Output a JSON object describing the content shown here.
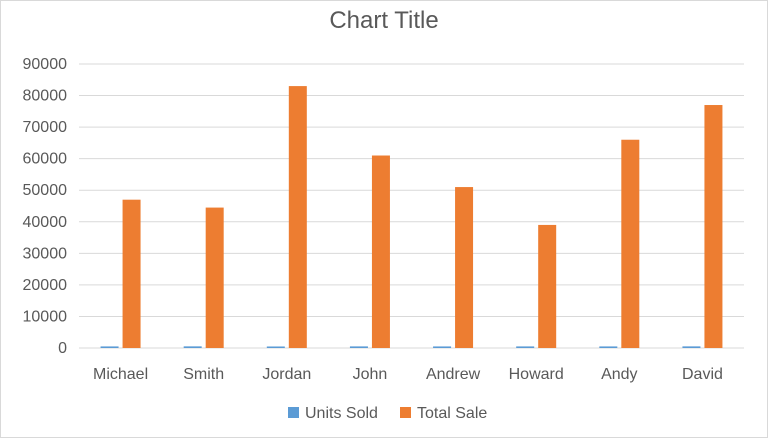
{
  "chart_data": {
    "type": "bar",
    "title": "Chart Title",
    "xlabel": "",
    "ylabel": "",
    "categories": [
      "Michael",
      "Smith",
      "Jordan",
      "John",
      "Andrew",
      "Howard",
      "Andy",
      "David"
    ],
    "series": [
      {
        "name": "Units Sold",
        "color": "#5b9bd5",
        "values": [
          500,
          520,
          480,
          510,
          495,
          505,
          500,
          515
        ]
      },
      {
        "name": "Total Sale",
        "color": "#ed7d31",
        "values": [
          47000,
          44500,
          83000,
          61000,
          51000,
          39000,
          66000,
          77000
        ]
      }
    ],
    "ylim": [
      0,
      90000
    ],
    "yticks": [
      0,
      10000,
      20000,
      30000,
      40000,
      50000,
      60000,
      70000,
      80000,
      90000
    ],
    "grid": true,
    "legend_position": "bottom"
  }
}
